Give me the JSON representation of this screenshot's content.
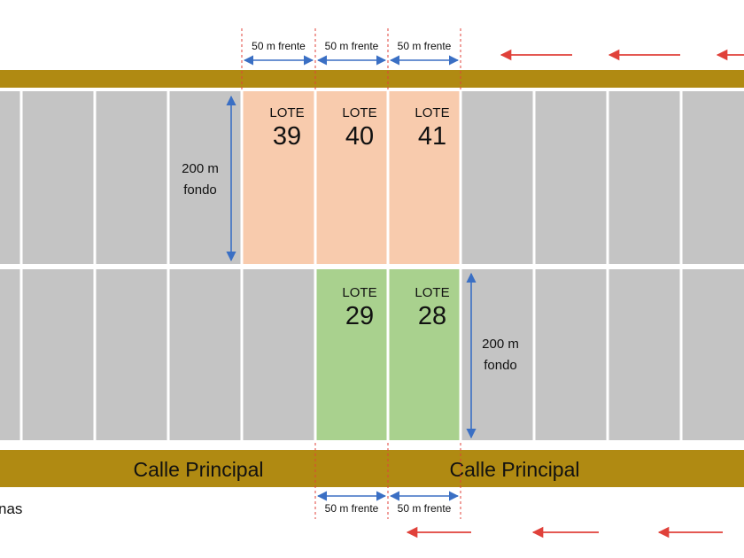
{
  "colors": {
    "road": "#b08a12",
    "lot_gray": "#c4c4c4",
    "lot_orange": "#f8cbad",
    "lot_green": "#a9d18e",
    "dimension_arrow": "#3a6fc4",
    "dashed_guide": "#e0413a",
    "direction_arrow": "#e0413a",
    "text": "#111111"
  },
  "roads": {
    "top_label": "",
    "bottom_left_label": "Calle Principal",
    "bottom_right_label": "Calle Principal"
  },
  "highlighted_lots": [
    {
      "prefix": "LOTE",
      "number": "39",
      "color": "orange"
    },
    {
      "prefix": "LOTE",
      "number": "40",
      "color": "orange"
    },
    {
      "prefix": "LOTE",
      "number": "41",
      "color": "orange"
    },
    {
      "prefix": "LOTE",
      "number": "29",
      "color": "green"
    },
    {
      "prefix": "LOTE",
      "number": "28",
      "color": "green"
    }
  ],
  "dimensions": {
    "frente_label": "50 m frente",
    "fondo_line1": "200 m",
    "fondo_line2": "fondo"
  },
  "cropped_text": "nas"
}
